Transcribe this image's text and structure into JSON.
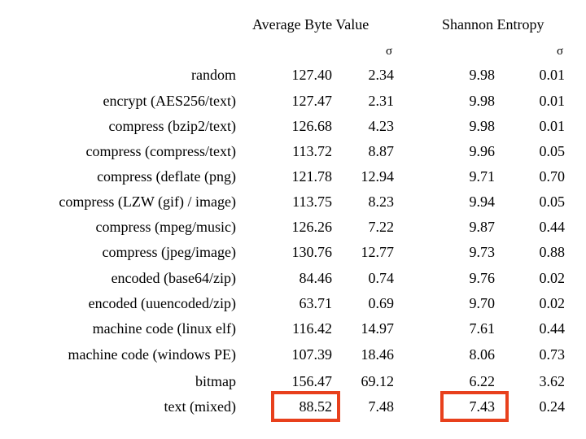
{
  "chart_data": {
    "type": "table",
    "headers": {
      "avg_byte_value": "Average Byte Value",
      "shannon_entropy": "Shannon Entropy",
      "sigma_avg": "σ",
      "sigma_entropy": "σ"
    },
    "rows": [
      {
        "label": "random",
        "avg": "127.40",
        "avg_sigma": "2.34",
        "entropy": "9.98",
        "entropy_sigma": "0.01"
      },
      {
        "label": "encrypt (AES256/text)",
        "avg": "127.47",
        "avg_sigma": "2.31",
        "entropy": "9.98",
        "entropy_sigma": "0.01"
      },
      {
        "label": "compress (bzip2/text)",
        "avg": "126.68",
        "avg_sigma": "4.23",
        "entropy": "9.98",
        "entropy_sigma": "0.01"
      },
      {
        "label": "compress (compress/text)",
        "avg": "113.72",
        "avg_sigma": "8.87",
        "entropy": "9.96",
        "entropy_sigma": "0.05"
      },
      {
        "label": "compress (deflate (png)",
        "avg": "121.78",
        "avg_sigma": "12.94",
        "entropy": "9.71",
        "entropy_sigma": "0.70"
      },
      {
        "label": "compress (LZW (gif) / image)",
        "avg": "113.75",
        "avg_sigma": "8.23",
        "entropy": "9.94",
        "entropy_sigma": "0.05"
      },
      {
        "label": "compress (mpeg/music)",
        "avg": "126.26",
        "avg_sigma": "7.22",
        "entropy": "9.87",
        "entropy_sigma": "0.44"
      },
      {
        "label": "compress (jpeg/image)",
        "avg": "130.76",
        "avg_sigma": "12.77",
        "entropy": "9.73",
        "entropy_sigma": "0.88"
      },
      {
        "label": "encoded (base64/zip)",
        "avg": "84.46",
        "avg_sigma": "0.74",
        "entropy": "9.76",
        "entropy_sigma": "0.02"
      },
      {
        "label": "encoded (uuencoded/zip)",
        "avg": "63.71",
        "avg_sigma": "0.69",
        "entropy": "9.70",
        "entropy_sigma": "0.02"
      },
      {
        "label": "machine code (linux elf)",
        "avg": "116.42",
        "avg_sigma": "14.97",
        "entropy": "7.61",
        "entropy_sigma": "0.44"
      },
      {
        "label": "machine code (windows PE)",
        "avg": "107.39",
        "avg_sigma": "18.46",
        "entropy": "8.06",
        "entropy_sigma": "0.73"
      },
      {
        "label": "bitmap",
        "avg": "156.47",
        "avg_sigma": "69.12",
        "entropy": "6.22",
        "entropy_sigma": "3.62"
      },
      {
        "label": "text (mixed)",
        "avg": "88.52",
        "avg_sigma": "7.48",
        "entropy": "7.43",
        "entropy_sigma": "0.24",
        "highlighted": [
          "avg",
          "entropy"
        ]
      }
    ],
    "highlight_color": "#e8401c"
  }
}
